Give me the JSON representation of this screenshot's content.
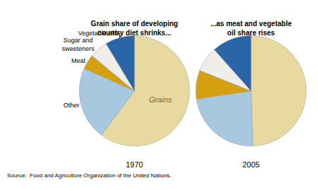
{
  "chart_data": [
    {
      "type": "pie",
      "title": "Grain share of developing\ncountry diet shrinks...",
      "subtitle": "1970",
      "categories": [
        "Grains",
        "Other",
        "Meat",
        "Sugar and\nsweeteners",
        "Vegetable oils"
      ],
      "values": [
        56,
        20,
        4,
        5,
        8
      ],
      "colors": [
        "#e8d9a0",
        "#a8c8e0",
        "#d4a010",
        "#f0eeea",
        "#2a65a8"
      ],
      "annotations": [
        "Source:  Food and Agriculture Organization of the United Nations."
      ]
    },
    {
      "type": "pie",
      "title": "...as meat and vegetable\noil share rises",
      "subtitle": "2005",
      "values": [
        47,
        22,
        8,
        7,
        11
      ],
      "colors": [
        "#e8d9a0",
        "#a8c8e0",
        "#d4a010",
        "#f0eeea",
        "#2a65a8"
      ]
    }
  ]
}
